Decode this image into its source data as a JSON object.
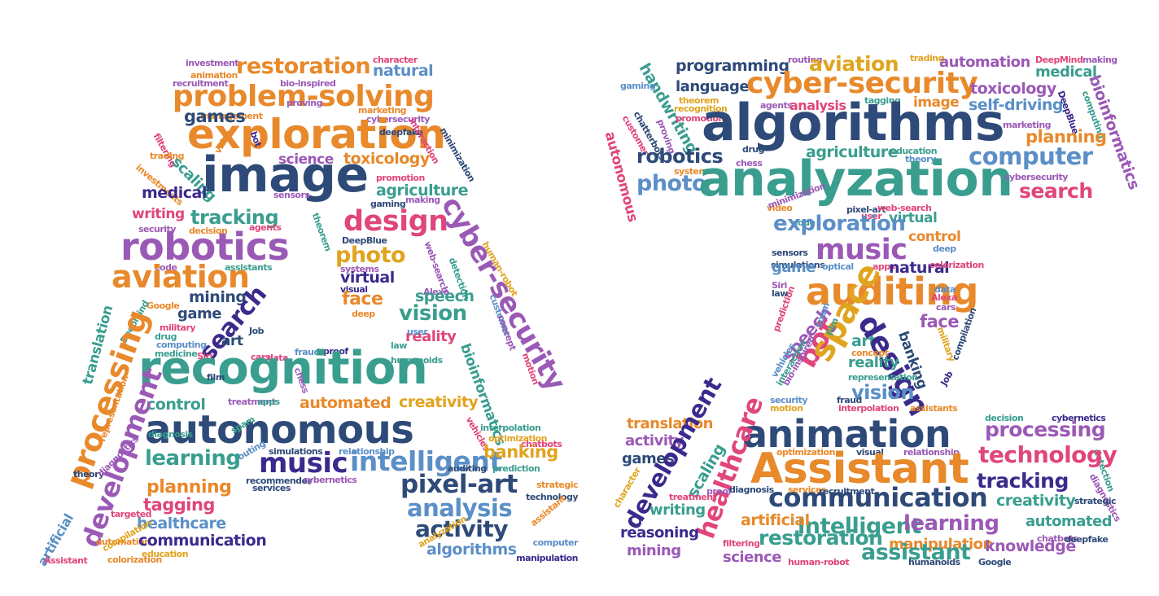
{
  "palette": {
    "orange": "#e8892b",
    "navy": "#2e4a78",
    "teal": "#3a9e8f",
    "purple": "#9b59b6",
    "pink": "#e0457b",
    "blue": "#5b8fc7",
    "gold": "#e0a41f",
    "indigo": "#3b2a8c"
  },
  "cloud_a": {
    "letter": "A",
    "words": [
      "investment",
      "character",
      "animation",
      "restoration",
      "recruitment",
      "natural",
      "bio-inspired",
      "problem-solving",
      "proving",
      "marketing",
      "management",
      "games",
      "cybersecurity",
      "exploration",
      "filtering",
      "bot",
      "deepfake",
      "trading",
      "video",
      "interaction",
      "minimization",
      "image",
      "science",
      "toxicology",
      "investments",
      "scaling",
      "medical",
      "agriculture",
      "promotion",
      "sensors",
      "gaming",
      "making",
      "writing",
      "tracking",
      "design",
      "cyber-security",
      "security",
      "agents",
      "robotics",
      "decision",
      "theorem",
      "DeepBlue",
      "photo",
      "human-robot",
      "code",
      "assistants",
      "systems",
      "web-search",
      "detection",
      "aviation",
      "virtual",
      "visual",
      "Alexa",
      "face",
      "speech",
      "mining",
      "Google",
      "translation",
      "DeepMind",
      "deep",
      "customer",
      "concept",
      "game",
      "search",
      "vision",
      "military",
      "drug",
      "Job",
      "reality",
      "user",
      "bioinformatics",
      "computing",
      "law",
      "art",
      "medicine",
      "Siri",
      "cars",
      "data",
      "fraud",
      "proof",
      "processing",
      "recognition",
      "humanoids",
      "motion",
      "chess",
      "film",
      "control",
      "automated",
      "creativity",
      "treatment",
      "apps",
      "representation",
      "vehicles",
      "autonomous",
      "interpolation",
      "optimization",
      "diagnosis",
      "spam",
      "simulations",
      "relationship",
      "chatbots",
      "development",
      "routing",
      "learning",
      "music",
      "intelligent",
      "banking",
      "theory",
      "recommender",
      "cybernetics",
      "auditing",
      "prediction",
      "diagnostics",
      "services",
      "planning",
      "strategic",
      "pixel-art",
      "technology",
      "targeted",
      "tagging",
      "artificial",
      "analysis",
      "healthcare",
      "automation",
      "assistant",
      "communication",
      "activity",
      "computer",
      "compilation",
      "analyzation",
      "Assistant",
      "colorization",
      "education",
      "algorithms",
      "manipulation",
      "chatterbots"
    ]
  },
  "cloud_i": {
    "letter": "I",
    "words": [
      "programming",
      "routing",
      "aviation",
      "trading",
      "automation",
      "DeepMind",
      "making",
      "handwriting",
      "language",
      "cyber-security",
      "medical",
      "toxicology",
      "gaming",
      "theorem",
      "agents",
      "analysis",
      "tagging",
      "image",
      "self-driving",
      "bioinformatics",
      "customer",
      "chatterbots",
      "recognition",
      "proving",
      "promotion",
      "DeepBlue",
      "computing",
      "algorithms",
      "marketing",
      "autonomous",
      "drug",
      "education",
      "planning",
      "robotics",
      "agriculture",
      "theory",
      "chess",
      "computer",
      "systems",
      "photo",
      "analyzation",
      "cybersecurity",
      "search",
      "video",
      "minimization",
      "pixel-art",
      "web-search",
      "code",
      "user",
      "virtual",
      "exploration",
      "sensors",
      "control",
      "music",
      "simulations",
      "optical",
      "apps",
      "deep",
      "game",
      "natural",
      "colorization",
      "Siri",
      "law",
      "auditing",
      "data",
      "Alexa",
      "cars",
      "prediction",
      "speech",
      "bot",
      "face",
      "banking",
      "military",
      "art",
      "spam",
      "space",
      "design",
      "film",
      "vehicles",
      "reality",
      "concept",
      "interaction",
      "bio-inspired",
      "representation",
      "compilation",
      "vision",
      "security",
      "fraud",
      "Job",
      "motion",
      "interpolation",
      "assistants",
      "animation",
      "translation",
      "decision",
      "cybernetics",
      "activity",
      "processing",
      "games",
      "development",
      "detection",
      "optimization",
      "visual",
      "relationship",
      "technology",
      "Assistant",
      "scaling",
      "character",
      "tracking",
      "healthcare",
      "diagnostics",
      "strategic",
      "proof",
      "treatment",
      "communication",
      "writing",
      "diagnosis",
      "services",
      "recruitment",
      "creativity",
      "reasoning",
      "intelligent",
      "learning",
      "artificial",
      "automated",
      "filtering",
      "chatbots",
      "deepfake",
      "restoration",
      "manipulation",
      "knowledge",
      "mining",
      "science",
      "assistant",
      "human-robot",
      "humanoids",
      "Google"
    ]
  }
}
